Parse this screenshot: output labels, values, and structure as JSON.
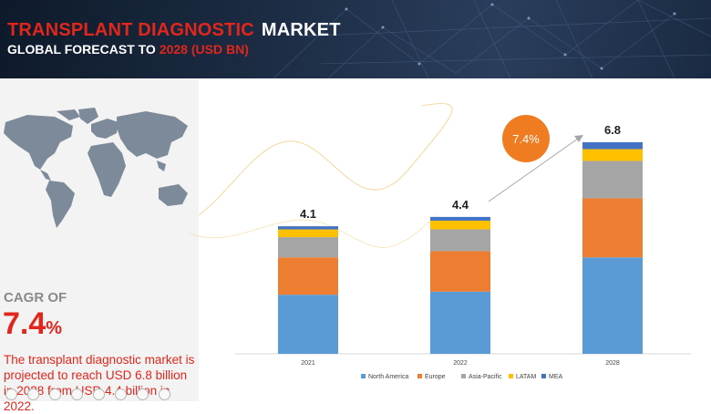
{
  "header": {
    "title_highlight": "TRANSPLANT DIAGNOSTIC",
    "title_rest": "MARKET",
    "subtitle_white": "GLOBAL FORECAST TO",
    "subtitle_red": "2028 (USD BN)"
  },
  "left_panel": {
    "cagr_label": "CAGR OF",
    "cagr_value": "7.4",
    "cagr_unit": "%",
    "description": "The transplant diagnostic market is projected to reach USD 6.8 billion in 2028 from USD 4.4 billion in 2022."
  },
  "growth_badge": "7.4%",
  "colors": {
    "accent_red": "#e1261c",
    "badge_orange": "#f07c22",
    "header_bg": "#1d2d45",
    "panel_bg": "#f3f3f3"
  },
  "chart_data": {
    "type": "bar",
    "stacked": true,
    "categories": [
      "2021",
      "2022",
      "2028"
    ],
    "totals": [
      "4.1",
      "4.4",
      "6.8"
    ],
    "total_values": [
      4.1,
      4.4,
      6.8
    ],
    "series": [
      {
        "name": "North America",
        "color": "#5b9bd5",
        "values": [
          1.9,
          2.0,
          3.1
        ]
      },
      {
        "name": "Europe",
        "color": "#ed7d31",
        "values": [
          1.2,
          1.3,
          1.9
        ]
      },
      {
        "name": "Asia-Pacific",
        "color": "#a5a5a5",
        "values": [
          0.65,
          0.7,
          1.2
        ]
      },
      {
        "name": "LATAM",
        "color": "#ffc000",
        "values": [
          0.25,
          0.28,
          0.38
        ]
      },
      {
        "name": "MEA",
        "color": "#4472c4",
        "values": [
          0.1,
          0.12,
          0.22
        ]
      }
    ],
    "ylim": [
      0,
      6.8
    ],
    "grid": false,
    "legend_position": "bottom"
  },
  "footer_icons": [
    "tool-icon-1",
    "tool-icon-2",
    "tool-icon-3",
    "tool-icon-4",
    "tool-icon-5",
    "tool-icon-6",
    "tool-icon-7",
    "tool-icon-8"
  ]
}
